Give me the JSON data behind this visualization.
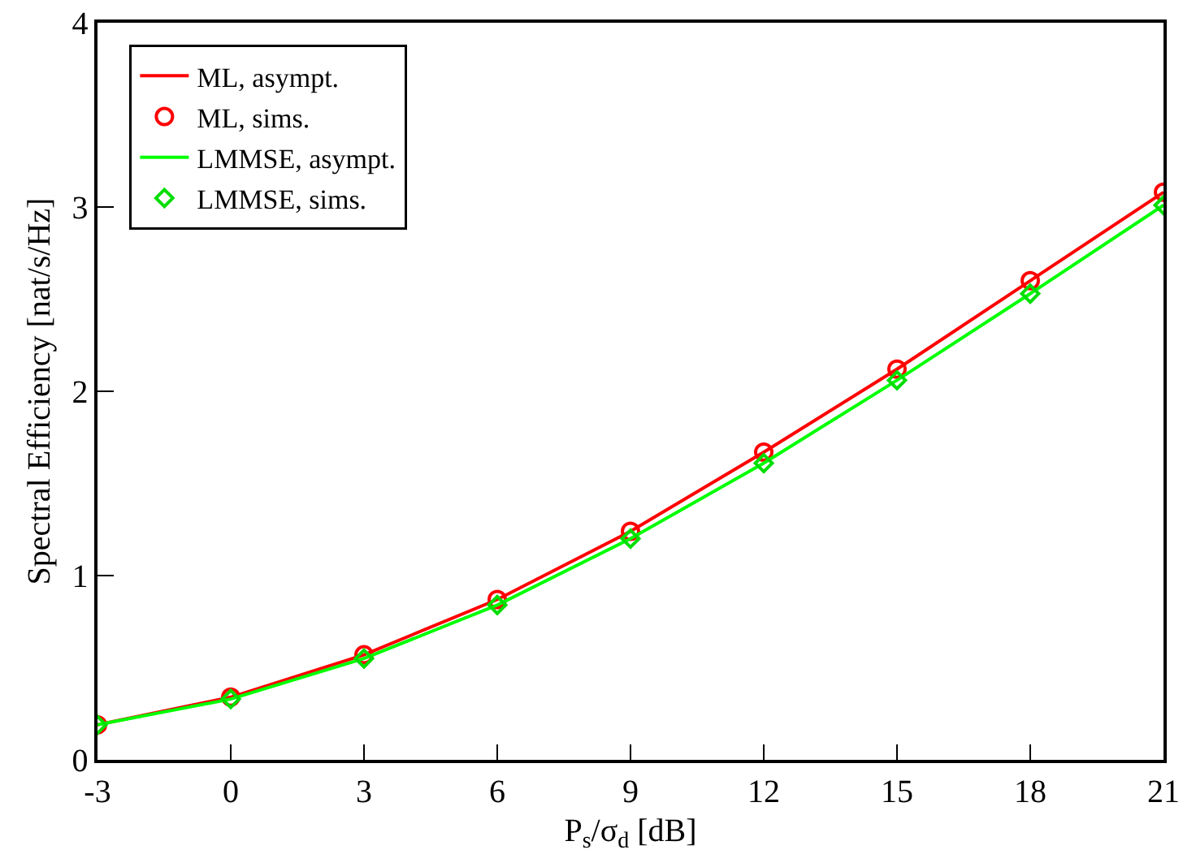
{
  "chart_data": {
    "type": "line",
    "xlabel": "P$_{s}$/σ$_{d}$ [dB]",
    "ylabel": "Spectral Efficiency [nat/s/Hz]",
    "x": [
      -3,
      0,
      3,
      6,
      9,
      12,
      15,
      18,
      21
    ],
    "xlim": [
      -3,
      21
    ],
    "xticks": [
      -3,
      0,
      3,
      6,
      9,
      12,
      15,
      18,
      21
    ],
    "ylim": [
      0,
      4
    ],
    "yticks": [
      0,
      1,
      2,
      3,
      4
    ],
    "grid": false,
    "legend": "top left",
    "series": [
      {
        "name": "ML, asympt.",
        "marker": "none",
        "color": "#ff0000",
        "values": [
          0.19,
          0.34,
          0.57,
          0.87,
          1.24,
          1.67,
          2.12,
          2.6,
          3.08
        ]
      },
      {
        "name": "ML, sims.",
        "type": "scatter",
        "marker": "circle",
        "color": "#ff0000",
        "values": [
          0.19,
          0.34,
          0.57,
          0.87,
          1.24,
          1.67,
          2.12,
          2.6,
          3.08
        ]
      },
      {
        "name": "LMMSE, asympt.",
        "marker": "none",
        "color": "#00ff00",
        "values": [
          0.19,
          0.33,
          0.55,
          0.84,
          1.2,
          1.61,
          2.06,
          2.53,
          3.01
        ]
      },
      {
        "name": "LMMSE, sims.",
        "type": "scatter",
        "marker": "diamond",
        "color": "#00dd00",
        "values": [
          0.19,
          0.33,
          0.55,
          0.84,
          1.2,
          1.61,
          2.06,
          2.53,
          3.01
        ]
      }
    ]
  }
}
